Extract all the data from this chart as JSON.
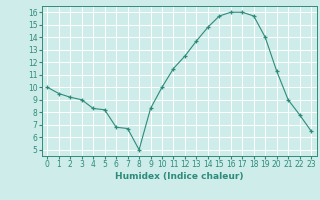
{
  "x": [
    0,
    1,
    2,
    3,
    4,
    5,
    6,
    7,
    8,
    9,
    10,
    11,
    12,
    13,
    14,
    15,
    16,
    17,
    18,
    19,
    20,
    21,
    22,
    23
  ],
  "y": [
    10,
    9.5,
    9.2,
    9.0,
    8.3,
    8.2,
    6.8,
    6.7,
    5.0,
    8.3,
    10.0,
    11.5,
    12.5,
    13.7,
    14.8,
    15.7,
    16.0,
    16.0,
    15.7,
    14.0,
    11.3,
    9.0,
    7.8,
    6.5
  ],
  "xlabel": "Humidex (Indice chaleur)",
  "ylim": [
    4.5,
    16.5
  ],
  "xlim": [
    -0.5,
    23.5
  ],
  "yticks": [
    5,
    6,
    7,
    8,
    9,
    10,
    11,
    12,
    13,
    14,
    15,
    16
  ],
  "xticks": [
    0,
    1,
    2,
    3,
    4,
    5,
    6,
    7,
    8,
    9,
    10,
    11,
    12,
    13,
    14,
    15,
    16,
    17,
    18,
    19,
    20,
    21,
    22,
    23
  ],
  "line_color": "#2e8b7a",
  "marker_color": "#2e8b7a",
  "bg_color": "#ceecea",
  "grid_color": "#ffffff",
  "tick_fontsize": 5.5,
  "xlabel_fontsize": 6.5
}
